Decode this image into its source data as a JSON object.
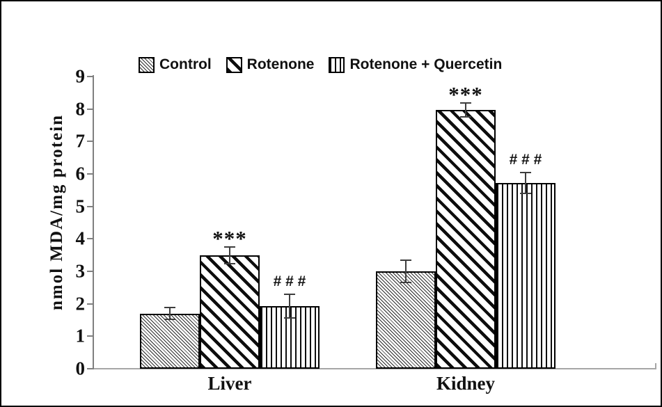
{
  "figure": {
    "background": "#ffffff",
    "border_color": "#000000"
  },
  "chart_data": {
    "type": "bar",
    "title": "",
    "xlabel": "",
    "ylabel": "nmol MDA/mg protein",
    "ylim": [
      0,
      9
    ],
    "yticks": [
      "0",
      "1",
      "2",
      "3",
      "4",
      "5",
      "6",
      "7",
      "8",
      "9"
    ],
    "grid": false,
    "legend_position": "top-inside",
    "categories": [
      "Liver",
      "Kidney"
    ],
    "series": [
      {
        "name": "Control",
        "pattern": "fine-downward-diagonal-hatch",
        "values": [
          1.7,
          3.0
        ],
        "errors": [
          0.2,
          0.37
        ],
        "annotations": [
          "",
          ""
        ]
      },
      {
        "name": "Rotenone",
        "pattern": "wide-downward-diagonal-hatch",
        "values": [
          3.5,
          7.97
        ],
        "errors": [
          0.28,
          0.23
        ],
        "annotations": [
          "***",
          "***"
        ]
      },
      {
        "name": "Rotenone + Quercetin",
        "pattern": "vertical-line-hatch",
        "values": [
          1.93,
          5.72
        ],
        "errors": [
          0.38,
          0.35
        ],
        "annotations": [
          "# # #",
          "# # #"
        ]
      }
    ],
    "bar_fill_color": "#ffffff",
    "hatch_color": "#111111",
    "axis_color": "#7f7f7f",
    "baseline_color": "#a6a6a6",
    "error_bar_color": "#3d3d3d"
  }
}
